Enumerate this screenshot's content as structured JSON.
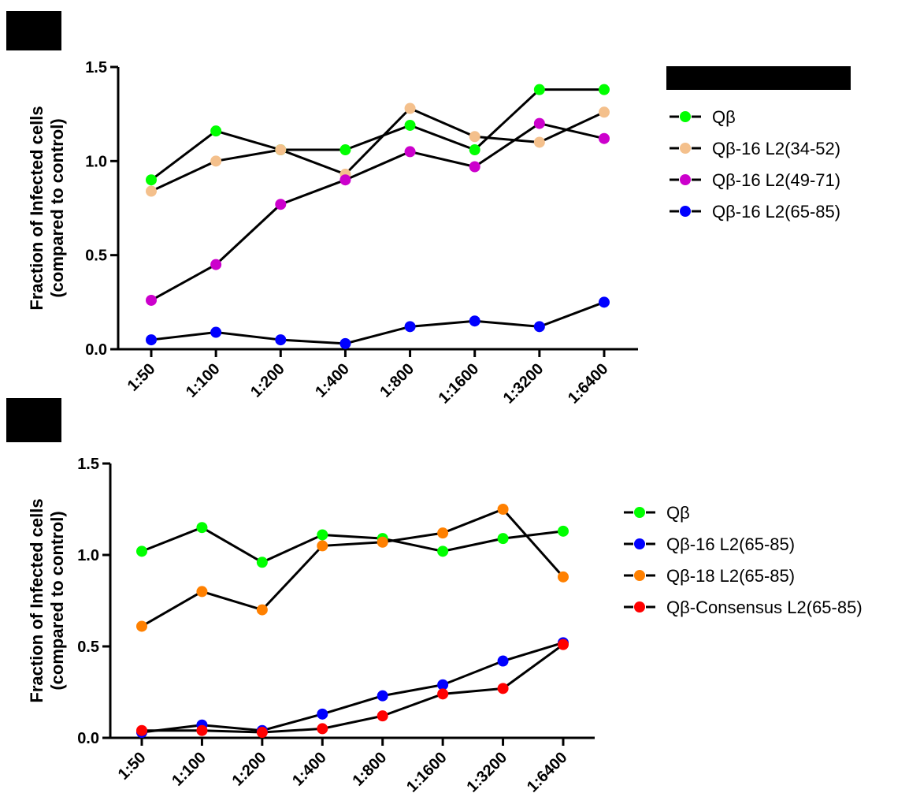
{
  "chart_data": [
    {
      "type": "line",
      "panel_marker": "redacted-box",
      "legend_header": "redacted-box",
      "xlabel": "",
      "ylabel": "Fraction of Infected cells\n(compared to control)",
      "categories": [
        "1:50",
        "1:100",
        "1:200",
        "1:400",
        "1:800",
        "1:1600",
        "1:3200",
        "1:6400"
      ],
      "ylim": [
        0,
        1.5
      ],
      "yticks": [
        "0.0",
        "0.5",
        "1.0",
        "1.5"
      ],
      "grid": false,
      "legend_position": "top-right",
      "series": [
        {
          "name": "Qβ",
          "color": "#00ff00",
          "values": [
            0.9,
            1.16,
            1.06,
            1.06,
            1.19,
            1.06,
            1.38,
            1.38
          ]
        },
        {
          "name": "Qβ-16 L2(34-52)",
          "color": "#f4c08c",
          "values": [
            0.84,
            1.0,
            1.06,
            0.93,
            1.28,
            1.13,
            1.1,
            1.26
          ]
        },
        {
          "name": "Qβ-16 L2(49-71)",
          "color": "#cc00cc",
          "values": [
            0.26,
            0.45,
            0.77,
            0.9,
            1.05,
            0.97,
            1.2,
            1.12
          ]
        },
        {
          "name": "Qβ-16 L2(65-85)",
          "color": "#0000ff",
          "values": [
            0.05,
            0.09,
            0.05,
            0.03,
            0.12,
            0.15,
            0.12,
            0.25
          ]
        }
      ]
    },
    {
      "type": "line",
      "panel_marker": "redacted-box",
      "xlabel": "",
      "ylabel": "Fraction of Infected cells\n(compared to control)",
      "categories": [
        "1:50",
        "1:100",
        "1:200",
        "1:400",
        "1:800",
        "1:1600",
        "1:3200",
        "1:6400"
      ],
      "ylim": [
        0,
        1.5
      ],
      "yticks": [
        "0.0",
        "0.5",
        "1.0",
        "1.5"
      ],
      "grid": false,
      "legend_position": "right",
      "series": [
        {
          "name": "Qβ",
          "color": "#00ff00",
          "values": [
            1.02,
            1.15,
            0.96,
            1.11,
            1.09,
            1.02,
            1.09,
            1.13
          ]
        },
        {
          "name": "Qβ-16 L2(65-85)",
          "color": "#0000ff",
          "values": [
            0.03,
            0.07,
            0.04,
            0.13,
            0.23,
            0.29,
            0.42,
            0.52
          ]
        },
        {
          "name": "Qβ-18 L2(65-85)",
          "color": "#ff8000",
          "values": [
            0.61,
            0.8,
            0.7,
            1.05,
            1.07,
            1.12,
            1.25,
            0.88
          ]
        },
        {
          "name": "Qβ-Consensus L2(65-85)",
          "color": "#ff0000",
          "values": [
            0.04,
            0.04,
            0.03,
            0.05,
            0.12,
            0.24,
            0.27,
            0.51
          ]
        }
      ]
    }
  ]
}
